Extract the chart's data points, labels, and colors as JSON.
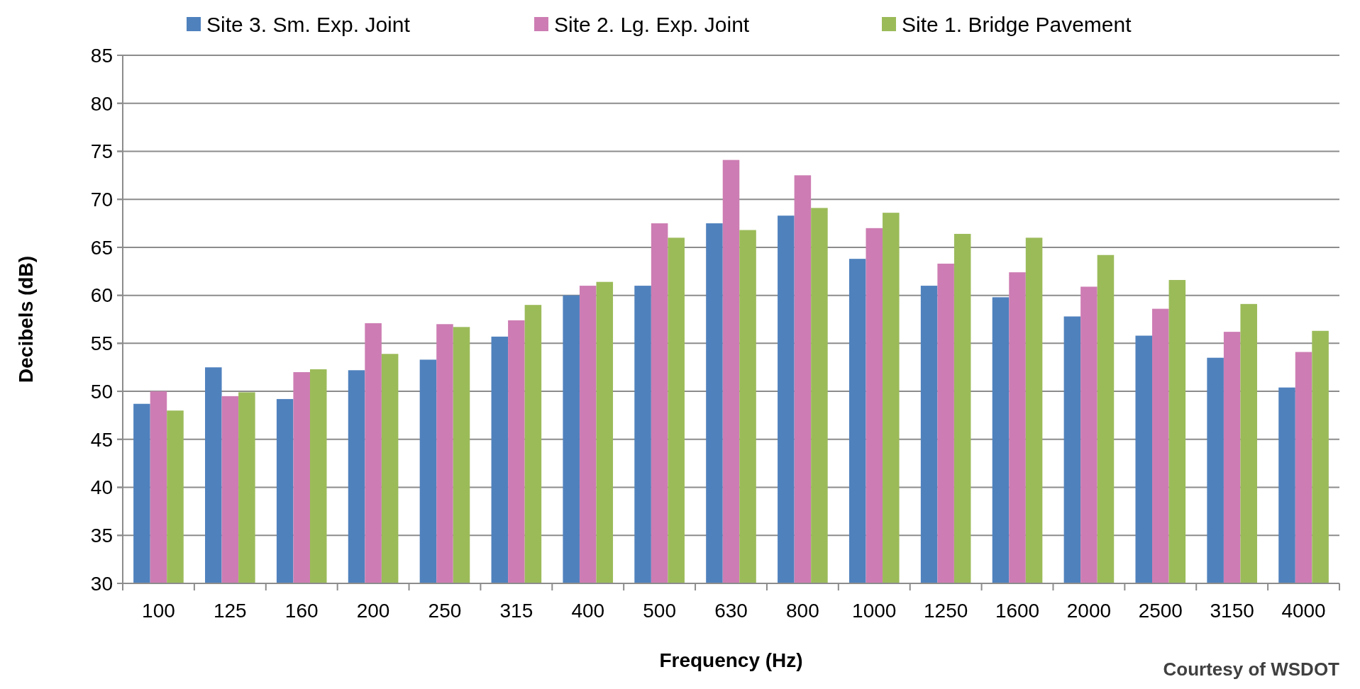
{
  "chart_data": {
    "type": "bar",
    "xlabel": "Frequency (Hz)",
    "ylabel": "Decibels (dB)",
    "categories": [
      "100",
      "125",
      "160",
      "200",
      "250",
      "315",
      "400",
      "500",
      "630",
      "800",
      "1000",
      "1250",
      "1600",
      "2000",
      "2500",
      "3150",
      "4000"
    ],
    "series": [
      {
        "name": "Site 3. Sm. Exp. Joint",
        "color": "#4f81bd",
        "values": [
          48.7,
          52.5,
          49.2,
          52.2,
          53.3,
          55.7,
          60,
          61,
          67.5,
          68.3,
          63.8,
          61,
          59.8,
          57.8,
          55.8,
          53.5,
          50.4
        ]
      },
      {
        "name": "Site 2. Lg. Exp. Joint",
        "color": "#cd7db3",
        "values": [
          50,
          49.5,
          52,
          57.1,
          57,
          57.4,
          61,
          67.5,
          74.1,
          72.5,
          67,
          63.3,
          62.4,
          60.9,
          58.6,
          56.2,
          54.1
        ]
      },
      {
        "name": "Site 1. Bridge Pavement",
        "color": "#9bbb59",
        "values": [
          48,
          49.9,
          52.3,
          53.9,
          56.7,
          59,
          61.4,
          66,
          66.8,
          69.1,
          68.6,
          66.4,
          66,
          64.2,
          61.6,
          59.1,
          56.3
        ]
      }
    ],
    "ylim": [
      30,
      85
    ],
    "yticks": [
      30,
      35,
      40,
      45,
      50,
      55,
      60,
      65,
      70,
      75,
      80,
      85
    ],
    "grid": "y",
    "legend": "top",
    "annotations": [
      "Courtesy of WSDOT"
    ]
  }
}
